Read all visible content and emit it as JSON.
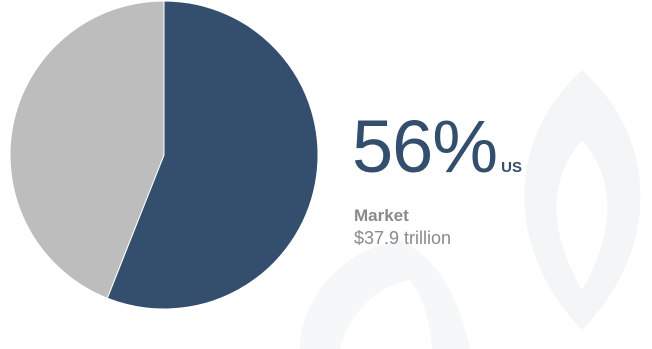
{
  "chart_data": {
    "type": "pie",
    "slices": [
      {
        "value": 56,
        "color": "#344e6e"
      },
      {
        "value": 44,
        "color": "#bdbdbd"
      }
    ]
  },
  "stat": {
    "percent": "56%",
    "suffix": "US",
    "label": "Market",
    "value": "$37.9 trillion"
  },
  "colors": {
    "accent": "#344e6e",
    "secondary": "#bdbdbd",
    "caption": "#8a8a8a",
    "watermark": "#f4f5f7"
  },
  "watermark_icon": "leaf-logo-icon"
}
